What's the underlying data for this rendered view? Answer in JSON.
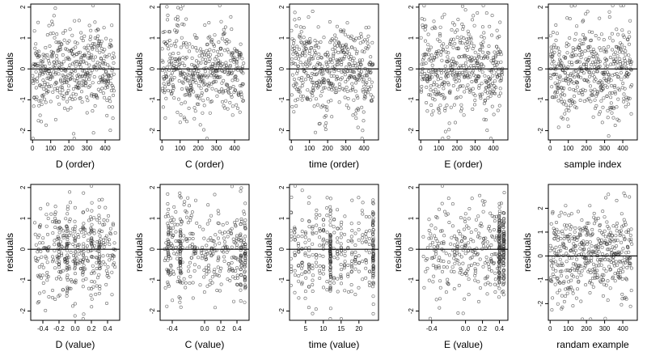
{
  "figure": {
    "rows": 2,
    "cols": 5,
    "background": "#ffffff",
    "point_color": "#333333"
  },
  "chart_data": [
    {
      "type": "scatter",
      "xlabel": "D (order)",
      "ylabel": "residuals",
      "xlim": [
        -10,
        480
      ],
      "ylim": [
        -2.3,
        2.1
      ],
      "xticks": [
        0,
        100,
        200,
        300,
        400
      ],
      "yticks": [
        -2,
        -1,
        0,
        1,
        2
      ],
      "hline": 0,
      "n_points": 450,
      "pattern": "order",
      "seed": 11
    },
    {
      "type": "scatter",
      "xlabel": "C (order)",
      "ylabel": "residuals",
      "xlim": [
        -10,
        480
      ],
      "ylim": [
        -2.3,
        2.1
      ],
      "xticks": [
        0,
        100,
        200,
        300,
        400
      ],
      "yticks": [
        -2,
        -1,
        0,
        1,
        2
      ],
      "hline": 0,
      "n_points": 450,
      "pattern": "order",
      "seed": 12
    },
    {
      "type": "scatter",
      "xlabel": "time (order)",
      "ylabel": "residuals",
      "xlim": [
        -10,
        480
      ],
      "ylim": [
        -2.3,
        2.1
      ],
      "xticks": [
        0,
        100,
        200,
        300,
        400
      ],
      "yticks": [
        -2,
        -1,
        0,
        1,
        2
      ],
      "hline": 0,
      "n_points": 450,
      "pattern": "order",
      "seed": 13
    },
    {
      "type": "scatter",
      "xlabel": "E (order)",
      "ylabel": "residuals",
      "xlim": [
        -10,
        480
      ],
      "ylim": [
        -2.3,
        2.1
      ],
      "xticks": [
        0,
        100,
        200,
        300,
        400
      ],
      "yticks": [
        -2,
        -1,
        0,
        1,
        2
      ],
      "hline": 0,
      "n_points": 450,
      "pattern": "order",
      "seed": 14
    },
    {
      "type": "scatter",
      "xlabel": "sample index",
      "ylabel": "residuals",
      "xlim": [
        -10,
        480
      ],
      "ylim": [
        -2.3,
        2.1
      ],
      "xticks": [
        0,
        100,
        200,
        300,
        400
      ],
      "yticks": [
        -2,
        -1,
        0,
        1,
        2
      ],
      "hline": 0,
      "n_points": 450,
      "pattern": "order",
      "seed": 15
    },
    {
      "type": "scatter",
      "xlabel": "D (value)",
      "ylabel": "residuals",
      "xlim": [
        -0.55,
        0.55
      ],
      "ylim": [
        -2.3,
        2.1
      ],
      "xticks": [
        -0.4,
        -0.2,
        0.0,
        0.2,
        0.4
      ],
      "xticklabels": [
        "-0.4",
        "-0.2",
        "0.0",
        "0.2",
        "0.4"
      ],
      "yticks": [
        -2,
        -1,
        0,
        1,
        2
      ],
      "hline": 0,
      "n_points": 420,
      "pattern": "columns",
      "columns": [
        -0.2,
        -0.1,
        0.0,
        0.1,
        0.2,
        0.3
      ],
      "seed": 21
    },
    {
      "type": "scatter",
      "xlabel": "C (value)",
      "ylabel": "residuals",
      "xlim": [
        -0.55,
        0.55
      ],
      "ylim": [
        -2.3,
        2.1
      ],
      "xticks": [
        -0.4,
        0.0,
        0.2,
        0.4
      ],
      "xticklabels": [
        "-0.4",
        "0.0",
        "0.2",
        "0.4"
      ],
      "yticks": [
        -2,
        -1,
        0,
        1,
        2
      ],
      "hline": 0,
      "n_points": 420,
      "pattern": "columns",
      "columns": [
        -0.45,
        -0.3,
        0.45,
        0.5
      ],
      "seed": 22
    },
    {
      "type": "scatter",
      "xlabel": "time (value)",
      "ylabel": "residuals",
      "xlim": [
        0.5,
        25.5
      ],
      "ylim": [
        -2.3,
        2.1
      ],
      "xticks": [
        5,
        10,
        15,
        20
      ],
      "yticks": [
        -2,
        -1,
        0,
        1,
        2
      ],
      "hline": 0,
      "n_points": 420,
      "pattern": "integers",
      "columns": [
        12,
        24
      ],
      "seed": 23
    },
    {
      "type": "scatter",
      "xlabel": "E (value)",
      "ylabel": "residuals",
      "xlim": [
        -0.55,
        0.5
      ],
      "ylim": [
        -2.3,
        2.1
      ],
      "xticks": [
        -0.4,
        0.0,
        0.2,
        0.4
      ],
      "xticklabels": [
        "-0.4",
        "0.0",
        "0.2",
        "0.4"
      ],
      "yticks": [
        -2,
        -1,
        0,
        1,
        2
      ],
      "hline": 0,
      "n_points": 420,
      "pattern": "columns",
      "columns": [
        0.4,
        0.45
      ],
      "seed": 24
    },
    {
      "type": "scatter",
      "xlabel": "randam example",
      "ylabel": "residuals",
      "xlim": [
        -10,
        480
      ],
      "ylim": [
        -2.7,
        3.0
      ],
      "xticks": [
        0,
        100,
        200,
        300,
        400
      ],
      "yticks": [
        -2,
        -1,
        0,
        1,
        2
      ],
      "hline": 0,
      "n_points": 450,
      "pattern": "order",
      "seed": 25
    }
  ]
}
